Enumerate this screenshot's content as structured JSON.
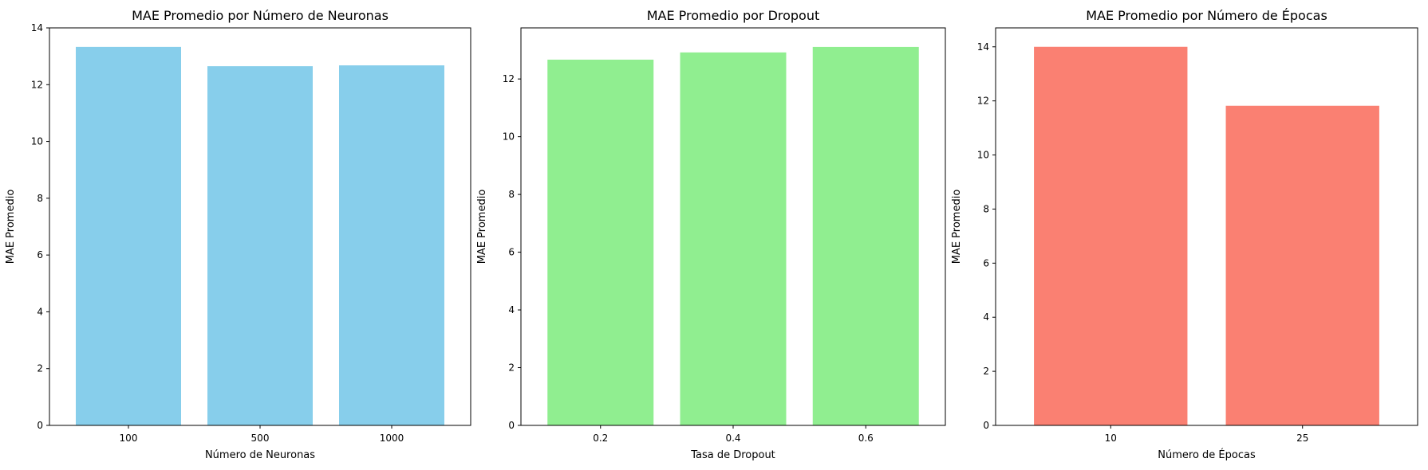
{
  "chart_data": [
    {
      "type": "bar",
      "title": "MAE Promedio por Número de Neuronas",
      "xlabel": "Número de Neuronas",
      "ylabel": "MAE Promedio",
      "categories": [
        "100",
        "500",
        "1000"
      ],
      "values": [
        13.33,
        12.65,
        12.68
      ],
      "ylim": [
        0,
        14
      ],
      "yticks": [
        0,
        2,
        4,
        6,
        8,
        10,
        12,
        14
      ],
      "color": "#87ceeb",
      "grid": false
    },
    {
      "type": "bar",
      "title": "MAE Promedio por Dropout",
      "xlabel": "Tasa de Dropout",
      "ylabel": "MAE Promedio",
      "categories": [
        "0.2",
        "0.4",
        "0.6"
      ],
      "values": [
        12.67,
        12.92,
        13.11
      ],
      "ylim": [
        0,
        13.77
      ],
      "yticks": [
        0,
        2,
        4,
        6,
        8,
        10,
        12
      ],
      "color": "#90ee90",
      "grid": false
    },
    {
      "type": "bar",
      "title": "MAE Promedio por Número de Épocas",
      "xlabel": "Número de Épocas",
      "ylabel": "MAE Promedio",
      "categories": [
        "10",
        "25"
      ],
      "values": [
        14.0,
        11.82
      ],
      "ylim": [
        0,
        14.7
      ],
      "yticks": [
        0,
        2,
        4,
        6,
        8,
        10,
        12,
        14
      ],
      "color": "#fa8072",
      "grid": false
    }
  ]
}
